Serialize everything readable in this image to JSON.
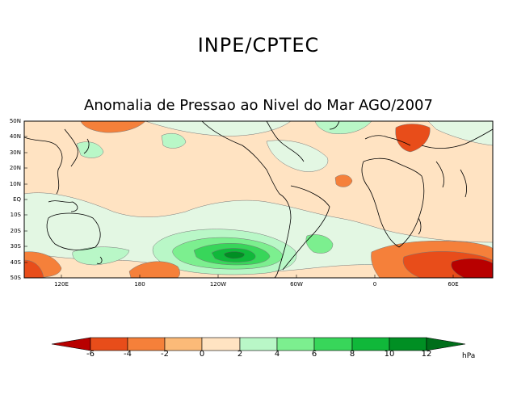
{
  "header": {
    "org": "INPE/CPTEC"
  },
  "map": {
    "title": "Anomalia de Pressao ao Nivel do Mar AGO/2007",
    "lat_labels": [
      "50N",
      "40N",
      "30N",
      "20N",
      "10N",
      "EQ",
      "10S",
      "20S",
      "30S",
      "40S",
      "50S"
    ],
    "lon_labels": [
      "120E",
      "180",
      "120W",
      "60W",
      "0",
      "60E"
    ],
    "colorbar": {
      "labels": [
        "-6",
        "-4",
        "-2",
        "0",
        "2",
        "4",
        "6",
        "8",
        "10",
        "12"
      ],
      "unit": "hPa",
      "colors": [
        "#b80000",
        "#e84d1a",
        "#f5803a",
        "#fbba78",
        "#ffe3c2",
        "#b9f7c7",
        "#7cef8f",
        "#38d65a",
        "#10b83a",
        "#008f23",
        "#006e1a"
      ]
    },
    "legend_colors": {
      "land_outline": "#000000",
      "neg_2_0": "#ffe3c2",
      "pos_0_2": "#e3f7e3"
    }
  }
}
